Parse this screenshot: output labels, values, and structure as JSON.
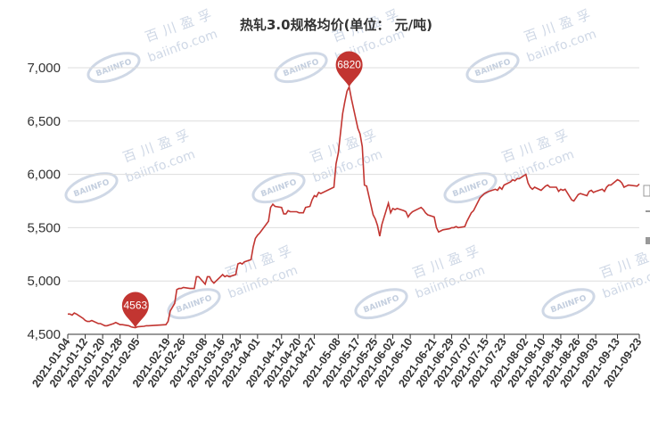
{
  "colors": {
    "line": "#c23531",
    "grid": "#dddddd",
    "axis": "#333333",
    "watermark": "#cfd8e6"
  },
  "watermark": {
    "cn": "百川盈孚",
    "en": "baiinfo.com",
    "logo": "BAIINFO"
  },
  "chart_data": {
    "type": "line",
    "title": "热轧3.0规格均价(单位： 元/吨)",
    "ylim": [
      4500,
      7000
    ],
    "yticks": [
      4500,
      5000,
      5500,
      6000,
      6500,
      7000
    ],
    "ytick_labels": [
      "4,500",
      "5,000",
      "5,500",
      "6,000",
      "6,500",
      "7,000"
    ],
    "grid": true,
    "xtick_labels": [
      "2021-01-04",
      "2021-01-12",
      "2021-01-20",
      "2021-01-28",
      "2021-02-05",
      "2021-02-19",
      "2021-02-26",
      "2021-03-08",
      "2021-03-16",
      "2021-03-24",
      "2021-04-01",
      "2021-04-12",
      "2021-04-20",
      "2021-04-27",
      "2021-05-08",
      "2021-05-17",
      "2021-05-25",
      "2021-06-02",
      "2021-06-10",
      "2021-06-21",
      "2021-06-29",
      "2021-07-07",
      "2021-07-15",
      "2021-07-23",
      "2021-08-02",
      "2021-08-10",
      "2021-08-18",
      "2021-08-26",
      "2021-09-03",
      "2021-09-13",
      "2021-09-23"
    ],
    "markers": [
      {
        "label": "4563",
        "date": "2021-02-04",
        "value": 4563
      },
      {
        "label": "6820",
        "date": "2021-05-13",
        "value": 6820
      }
    ],
    "series": [
      {
        "points": [
          [
            "2021-01-04",
            4690
          ],
          [
            "2021-01-05",
            4690
          ],
          [
            "2021-01-06",
            4680
          ],
          [
            "2021-01-07",
            4700
          ],
          [
            "2021-01-08",
            4690
          ],
          [
            "2021-01-11",
            4650
          ],
          [
            "2021-01-12",
            4630
          ],
          [
            "2021-01-13",
            4620
          ],
          [
            "2021-01-14",
            4620
          ],
          [
            "2021-01-15",
            4630
          ],
          [
            "2021-01-18",
            4600
          ],
          [
            "2021-01-19",
            4600
          ],
          [
            "2021-01-20",
            4590
          ],
          [
            "2021-01-21",
            4580
          ],
          [
            "2021-01-22",
            4580
          ],
          [
            "2021-01-25",
            4600
          ],
          [
            "2021-01-26",
            4610
          ],
          [
            "2021-01-27",
            4600
          ],
          [
            "2021-01-28",
            4590
          ],
          [
            "2021-01-29",
            4590
          ],
          [
            "2021-02-01",
            4580
          ],
          [
            "2021-02-02",
            4570
          ],
          [
            "2021-02-03",
            4565
          ],
          [
            "2021-02-04",
            4563
          ],
          [
            "2021-02-05",
            4570
          ],
          [
            "2021-02-08",
            4575
          ],
          [
            "2021-02-09",
            4580
          ],
          [
            "2021-02-10",
            4580
          ],
          [
            "2021-02-18",
            4590
          ],
          [
            "2021-02-19",
            4620
          ],
          [
            "2021-02-20",
            4720
          ],
          [
            "2021-02-22",
            4790
          ],
          [
            "2021-02-23",
            4920
          ],
          [
            "2021-02-24",
            4930
          ],
          [
            "2021-02-25",
            4930
          ],
          [
            "2021-02-26",
            4940
          ],
          [
            "2021-03-01",
            4930
          ],
          [
            "2021-03-02",
            4930
          ],
          [
            "2021-03-03",
            4930
          ],
          [
            "2021-03-04",
            5040
          ],
          [
            "2021-03-05",
            5040
          ],
          [
            "2021-03-08",
            4970
          ],
          [
            "2021-03-09",
            5040
          ],
          [
            "2021-03-10",
            5040
          ],
          [
            "2021-03-11",
            5000
          ],
          [
            "2021-03-12",
            4980
          ],
          [
            "2021-03-15",
            5040
          ],
          [
            "2021-03-16",
            5060
          ],
          [
            "2021-03-17",
            5040
          ],
          [
            "2021-03-18",
            5050
          ],
          [
            "2021-03-19",
            5040
          ],
          [
            "2021-03-22",
            5060
          ],
          [
            "2021-03-23",
            5160
          ],
          [
            "2021-03-24",
            5170
          ],
          [
            "2021-03-25",
            5160
          ],
          [
            "2021-03-26",
            5180
          ],
          [
            "2021-03-29",
            5200
          ],
          [
            "2021-03-30",
            5320
          ],
          [
            "2021-03-31",
            5400
          ],
          [
            "2021-04-01",
            5430
          ],
          [
            "2021-04-02",
            5450
          ],
          [
            "2021-04-06",
            5560
          ],
          [
            "2021-04-07",
            5690
          ],
          [
            "2021-04-08",
            5720
          ],
          [
            "2021-04-09",
            5700
          ],
          [
            "2021-04-12",
            5690
          ],
          [
            "2021-04-13",
            5630
          ],
          [
            "2021-04-14",
            5630
          ],
          [
            "2021-04-15",
            5660
          ],
          [
            "2021-04-16",
            5650
          ],
          [
            "2021-04-19",
            5650
          ],
          [
            "2021-04-20",
            5640
          ],
          [
            "2021-04-21",
            5640
          ],
          [
            "2021-04-22",
            5640
          ],
          [
            "2021-04-23",
            5690
          ],
          [
            "2021-04-25",
            5700
          ],
          [
            "2021-04-26",
            5760
          ],
          [
            "2021-04-27",
            5800
          ],
          [
            "2021-04-28",
            5790
          ],
          [
            "2021-04-29",
            5830
          ],
          [
            "2021-04-30",
            5820
          ],
          [
            "2021-05-06",
            5880
          ],
          [
            "2021-05-07",
            6100
          ],
          [
            "2021-05-08",
            6200
          ],
          [
            "2021-05-10",
            6570
          ],
          [
            "2021-05-11",
            6680
          ],
          [
            "2021-05-12",
            6780
          ],
          [
            "2021-05-13",
            6820
          ],
          [
            "2021-05-14",
            6710
          ],
          [
            "2021-05-17",
            6430
          ],
          [
            "2021-05-18",
            6380
          ],
          [
            "2021-05-19",
            6260
          ],
          [
            "2021-05-20",
            5900
          ],
          [
            "2021-05-21",
            5890
          ],
          [
            "2021-05-24",
            5620
          ],
          [
            "2021-05-25",
            5580
          ],
          [
            "2021-05-26",
            5520
          ],
          [
            "2021-05-27",
            5420
          ],
          [
            "2021-05-28",
            5530
          ],
          [
            "2021-05-31",
            5730
          ],
          [
            "2021-06-01",
            5640
          ],
          [
            "2021-06-02",
            5680
          ],
          [
            "2021-06-03",
            5670
          ],
          [
            "2021-06-04",
            5680
          ],
          [
            "2021-06-07",
            5660
          ],
          [
            "2021-06-08",
            5650
          ],
          [
            "2021-06-09",
            5600
          ],
          [
            "2021-06-10",
            5630
          ],
          [
            "2021-06-11",
            5650
          ],
          [
            "2021-06-15",
            5690
          ],
          [
            "2021-06-16",
            5670
          ],
          [
            "2021-06-17",
            5640
          ],
          [
            "2021-06-18",
            5620
          ],
          [
            "2021-06-21",
            5600
          ],
          [
            "2021-06-22",
            5500
          ],
          [
            "2021-06-23",
            5460
          ],
          [
            "2021-06-24",
            5470
          ],
          [
            "2021-06-25",
            5480
          ],
          [
            "2021-06-28",
            5490
          ],
          [
            "2021-06-29",
            5500
          ],
          [
            "2021-06-30",
            5500
          ],
          [
            "2021-07-01",
            5510
          ],
          [
            "2021-07-02",
            5500
          ],
          [
            "2021-07-05",
            5510
          ],
          [
            "2021-07-06",
            5560
          ],
          [
            "2021-07-07",
            5600
          ],
          [
            "2021-07-08",
            5640
          ],
          [
            "2021-07-09",
            5660
          ],
          [
            "2021-07-12",
            5780
          ],
          [
            "2021-07-13",
            5800
          ],
          [
            "2021-07-14",
            5820
          ],
          [
            "2021-07-15",
            5830
          ],
          [
            "2021-07-16",
            5840
          ],
          [
            "2021-07-19",
            5860
          ],
          [
            "2021-07-20",
            5850
          ],
          [
            "2021-07-21",
            5880
          ],
          [
            "2021-07-22",
            5860
          ],
          [
            "2021-07-23",
            5900
          ],
          [
            "2021-07-26",
            5930
          ],
          [
            "2021-07-27",
            5950
          ],
          [
            "2021-07-28",
            5940
          ],
          [
            "2021-07-29",
            5960
          ],
          [
            "2021-07-30",
            5960
          ],
          [
            "2021-08-02",
            6000
          ],
          [
            "2021-08-03",
            5920
          ],
          [
            "2021-08-04",
            5880
          ],
          [
            "2021-08-05",
            5860
          ],
          [
            "2021-08-06",
            5880
          ],
          [
            "2021-08-09",
            5850
          ],
          [
            "2021-08-10",
            5870
          ],
          [
            "2021-08-11",
            5890
          ],
          [
            "2021-08-12",
            5900
          ],
          [
            "2021-08-13",
            5880
          ],
          [
            "2021-08-16",
            5880
          ],
          [
            "2021-08-17",
            5840
          ],
          [
            "2021-08-18",
            5860
          ],
          [
            "2021-08-19",
            5850
          ],
          [
            "2021-08-20",
            5860
          ],
          [
            "2021-08-23",
            5760
          ],
          [
            "2021-08-24",
            5750
          ],
          [
            "2021-08-25",
            5780
          ],
          [
            "2021-08-26",
            5810
          ],
          [
            "2021-08-27",
            5820
          ],
          [
            "2021-08-30",
            5800
          ],
          [
            "2021-08-31",
            5840
          ],
          [
            "2021-09-01",
            5850
          ],
          [
            "2021-09-02",
            5830
          ],
          [
            "2021-09-03",
            5840
          ],
          [
            "2021-09-06",
            5860
          ],
          [
            "2021-09-07",
            5840
          ],
          [
            "2021-09-08",
            5880
          ],
          [
            "2021-09-09",
            5900
          ],
          [
            "2021-09-10",
            5900
          ],
          [
            "2021-09-13",
            5950
          ],
          [
            "2021-09-14",
            5940
          ],
          [
            "2021-09-15",
            5920
          ],
          [
            "2021-09-16",
            5880
          ],
          [
            "2021-09-17",
            5890
          ],
          [
            "2021-09-18",
            5900
          ],
          [
            "2021-09-22",
            5890
          ],
          [
            "2021-09-23",
            5910
          ]
        ]
      }
    ]
  }
}
